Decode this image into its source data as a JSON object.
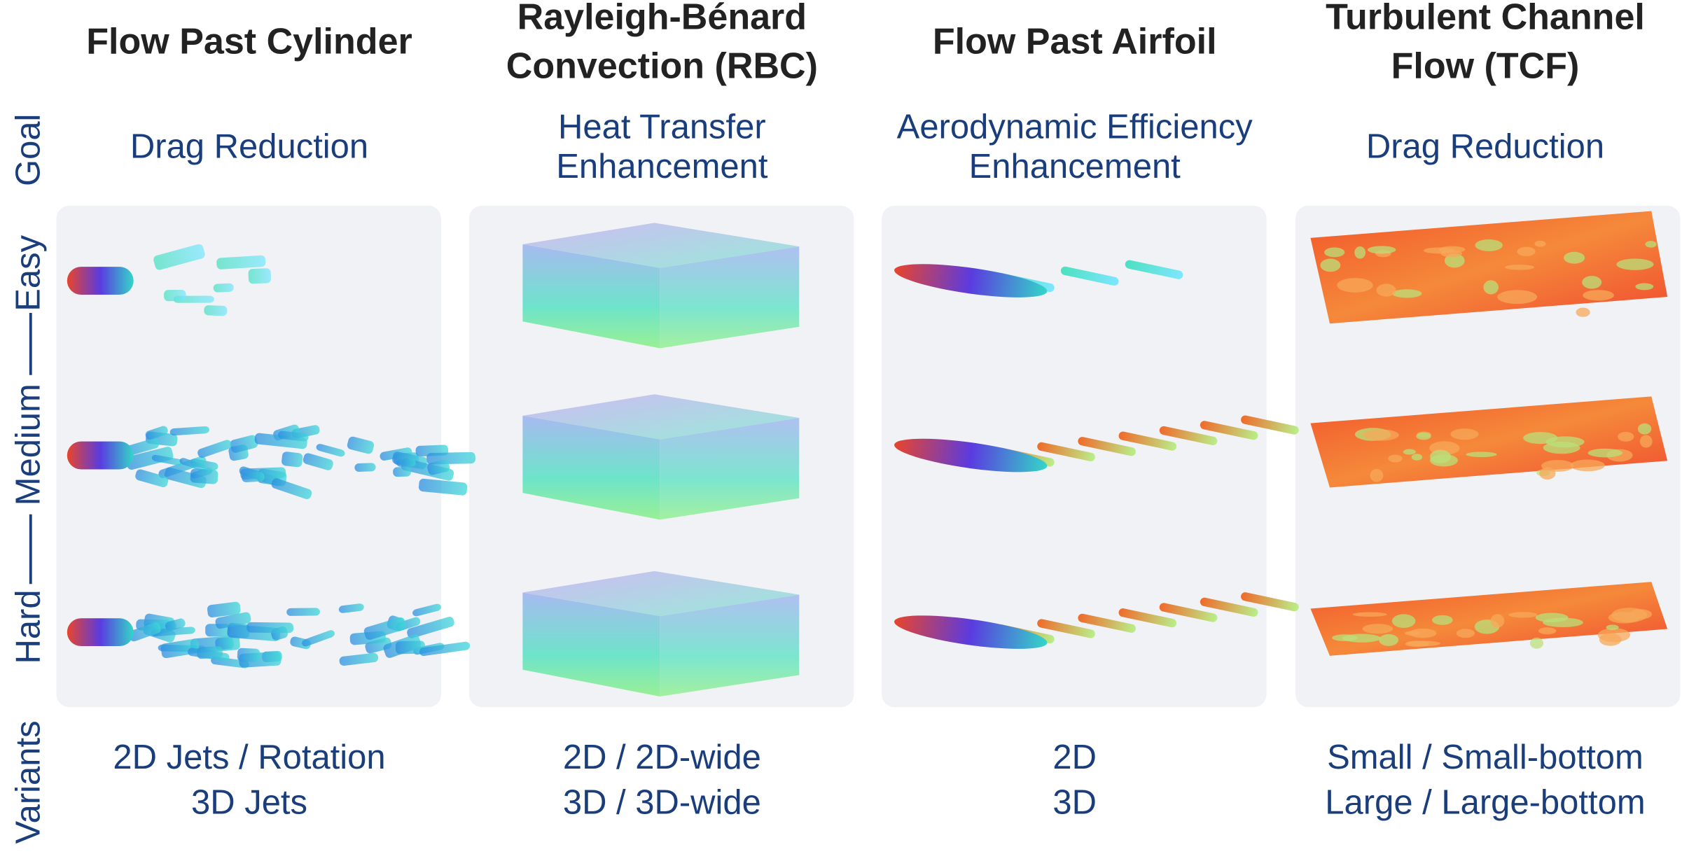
{
  "columns": [
    {
      "title": [
        "Flow Past Cylinder"
      ],
      "goal": [
        "Drag Reduction"
      ],
      "variants": [
        "2D Jets / Rotation",
        "3D Jets"
      ]
    },
    {
      "title": [
        "Rayleigh-Bénard",
        "Convection (RBC)"
      ],
      "goal": [
        "Heat Transfer",
        "Enhancement"
      ],
      "variants": [
        "2D / 2D-wide",
        "3D / 3D-wide"
      ]
    },
    {
      "title": [
        "Flow Past Airfoil"
      ],
      "goal": [
        "Aerodynamic Efficiency",
        "Enhancement"
      ],
      "variants": [
        "2D",
        "3D"
      ]
    },
    {
      "title": [
        "Turbulent Channel",
        "Flow (TCF)"
      ],
      "goal": [
        "Drag Reduction"
      ],
      "variants": [
        "Small / Small-bottom",
        "Large / Large-bottom"
      ]
    }
  ],
  "row_labels": [
    "Goal",
    "Easy",
    "Medium",
    "Hard",
    "Variants"
  ]
}
